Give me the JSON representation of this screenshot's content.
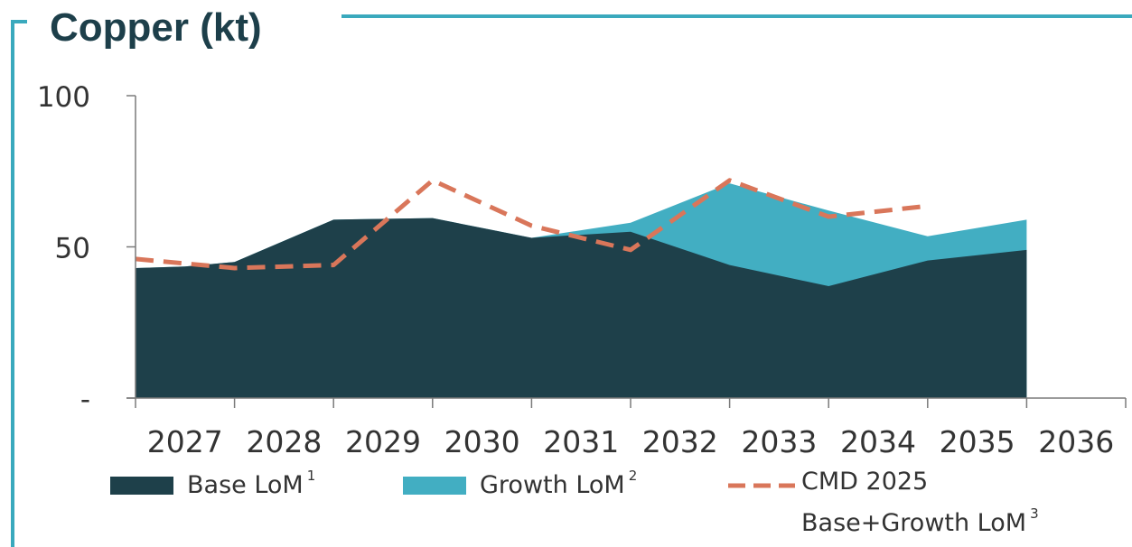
{
  "chart_data": {
    "type": "area",
    "title": "Copper (kt)",
    "categories": [
      "2027",
      "2028",
      "2029",
      "2030",
      "2031",
      "2032",
      "2033",
      "2034",
      "2035",
      "2036"
    ],
    "y_ticks": [
      {
        "value": 100,
        "label": "100"
      },
      {
        "value": 50,
        "label": "50"
      },
      {
        "value": 0,
        "label": "-"
      }
    ],
    "ylim": [
      0,
      100
    ],
    "series": [
      {
        "name": "Base LoM",
        "superscript": "1",
        "style": "area",
        "color": "#1e404a",
        "points": [
          [
            -0.5,
            43
          ],
          [
            0,
            43.5
          ],
          [
            0.5,
            45
          ],
          [
            1.5,
            59
          ],
          [
            2.5,
            59.5
          ],
          [
            3.5,
            53
          ],
          [
            4.5,
            55
          ],
          [
            5.5,
            44
          ],
          [
            6.5,
            37
          ],
          [
            7.5,
            45.5
          ],
          [
            8.5,
            49
          ]
        ]
      },
      {
        "name": "Growth LoM",
        "superscript": "2",
        "style": "area",
        "color": "#42aec2",
        "points": [
          [
            -0.5,
            43
          ],
          [
            0,
            43.5
          ],
          [
            0.5,
            45
          ],
          [
            1.5,
            59
          ],
          [
            2.5,
            59.5
          ],
          [
            3.5,
            53
          ],
          [
            4.5,
            58
          ],
          [
            5.5,
            71
          ],
          [
            6.5,
            62
          ],
          [
            7.5,
            53.5
          ],
          [
            8.5,
            59
          ]
        ]
      },
      {
        "name": "CMD 2025",
        "name_line2": "Base+Growth LoM",
        "superscript": "3",
        "style": "dashed-line",
        "color": "#d9765a",
        "points": [
          [
            -0.5,
            46
          ],
          [
            0.5,
            43
          ],
          [
            1.5,
            44
          ],
          [
            2.5,
            72
          ],
          [
            3.5,
            57
          ],
          [
            4.5,
            49
          ],
          [
            5.5,
            72
          ],
          [
            6.5,
            60
          ],
          [
            7.5,
            63.5
          ]
        ]
      }
    ],
    "legend_position": "bottom",
    "grid": false
  }
}
